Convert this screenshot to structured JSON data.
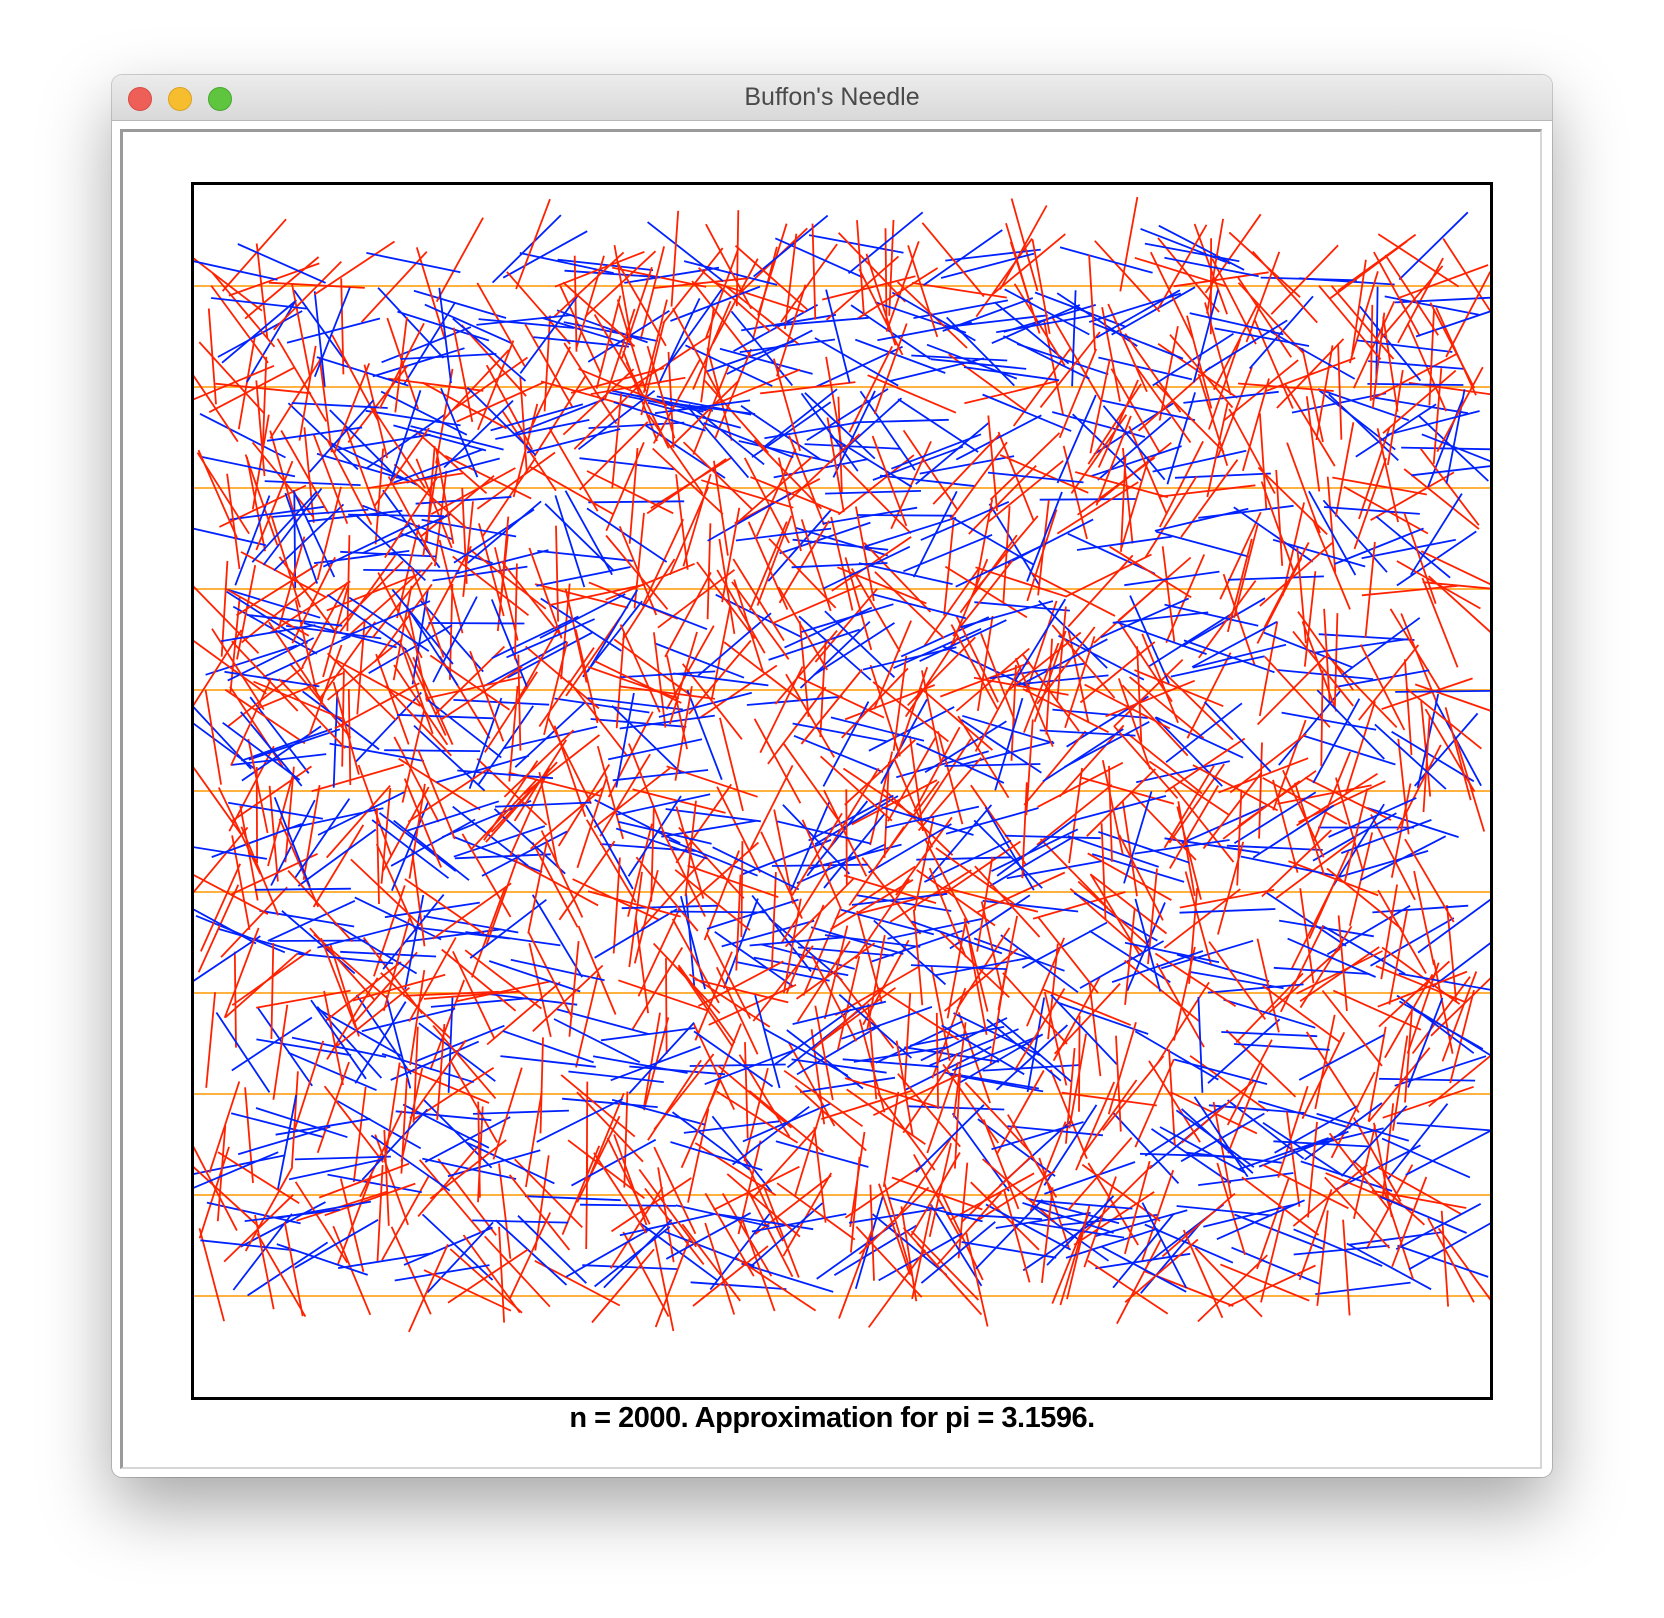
{
  "window": {
    "title": "Buffon's Needle"
  },
  "colors": {
    "line": "#ff9900",
    "crossing_needle": "#ff2200",
    "non_crossing_needle": "#0022ff",
    "frame": "#000000"
  },
  "simulation": {
    "n": 2000,
    "pi_estimate": 3.1596,
    "lines": 11,
    "result_text": "n = 2000. Approximation for pi = 3.1596."
  }
}
